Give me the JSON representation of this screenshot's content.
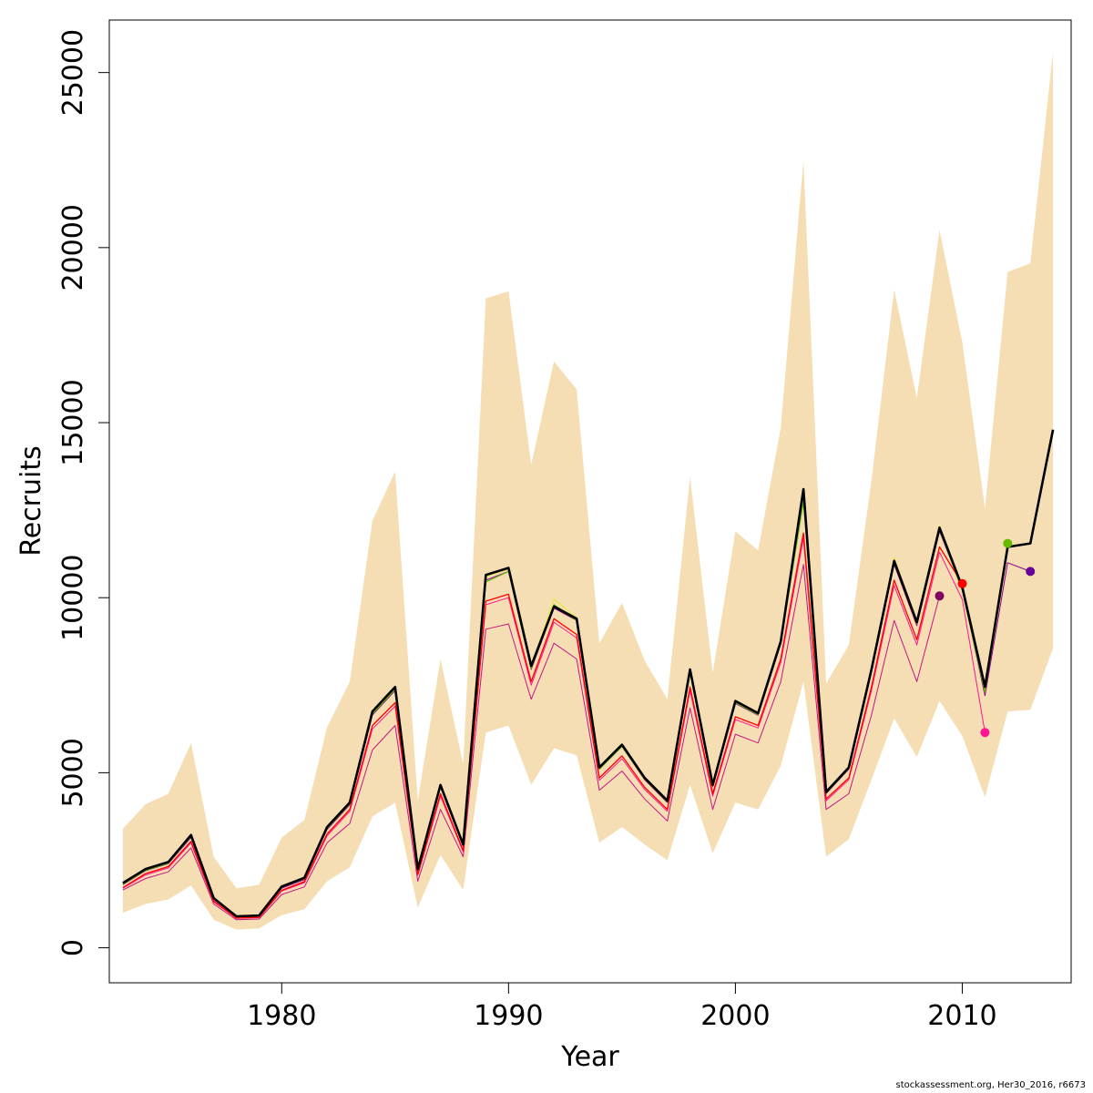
{
  "chart_data": {
    "type": "line",
    "xlabel": "Year",
    "ylabel": "Recruits",
    "xlim": [
      1972.4,
      2014.8
    ],
    "ylim": [
      -1000,
      26500
    ],
    "x_ticks": [
      1980,
      1990,
      2000,
      2010
    ],
    "y_ticks": [
      0,
      5000,
      10000,
      15000,
      20000,
      25000
    ],
    "grid": false,
    "legend": "none",
    "band": {
      "color": "#F5DEB3",
      "x": [
        1973,
        1974,
        1975,
        1976,
        1977,
        1978,
        1979,
        1980,
        1981,
        1982,
        1983,
        1984,
        1985,
        1986,
        1987,
        1988,
        1989,
        1990,
        1991,
        1992,
        1993,
        1994,
        1995,
        1996,
        1997,
        1998,
        1999,
        2000,
        2001,
        2002,
        2003,
        2004,
        2005,
        2006,
        2007,
        2008,
        2009,
        2010,
        2011,
        2012,
        2013,
        2014
      ],
      "lower": [
        1000,
        1250,
        1380,
        1780,
        800,
        520,
        550,
        930,
        1100,
        1900,
        2300,
        3750,
        4150,
        1150,
        2650,
        1650,
        6150,
        6350,
        4650,
        5700,
        5500,
        3000,
        3450,
        2950,
        2500,
        4650,
        2700,
        4150,
        3950,
        5200,
        7600,
        2600,
        3100,
        4800,
        6550,
        5450,
        7050,
        6050,
        4300,
        6750,
        6800,
        8550
      ],
      "upper": [
        3400,
        4100,
        4400,
        5850,
        2600,
        1700,
        1800,
        3150,
        3650,
        6300,
        7600,
        12200,
        13600,
        4200,
        8250,
        5250,
        18550,
        18750,
        13800,
        16750,
        15950,
        8700,
        9850,
        8200,
        7100,
        13450,
        7850,
        11900,
        11350,
        14850,
        22500,
        7550,
        8650,
        13350,
        18800,
        15700,
        20500,
        17300,
        12550,
        19300,
        19550,
        25600
      ]
    },
    "series": [
      {
        "color": "#000000",
        "width": 2.6,
        "x": [
          1973,
          1974,
          1975,
          1976,
          1977,
          1978,
          1979,
          1980,
          1981,
          1982,
          1983,
          1984,
          1985,
          1986,
          1987,
          1988,
          1989,
          1990,
          1991,
          1992,
          1993,
          1994,
          1995,
          1996,
          1997,
          1998,
          1999,
          2000,
          2001,
          2002,
          2003,
          2004,
          2005,
          2006,
          2007,
          2008,
          2009,
          2010,
          2011,
          2012,
          2013,
          2014
        ],
        "y": [
          1850,
          2250,
          2450,
          3220,
          1420,
          900,
          920,
          1750,
          2000,
          3450,
          4150,
          6750,
          7450,
          2250,
          4650,
          2950,
          10650,
          10850,
          8050,
          9750,
          9400,
          5150,
          5800,
          4850,
          4200,
          7950,
          4650,
          7050,
          6700,
          8750,
          13100,
          4450,
          5150,
          7950,
          11050,
          9300,
          12000,
          10300,
          7450,
          11450,
          11550,
          14800
        ]
      },
      {
        "color": "#E3E840",
        "width": 1.2,
        "x": [
          1973,
          1974,
          1975,
          1976,
          1977,
          1978,
          1979,
          1980,
          1981,
          1982,
          1983,
          1984,
          1985,
          1986,
          1987,
          1988,
          1989,
          1990,
          1991,
          1992,
          1993,
          1994,
          1995,
          1996,
          1997,
          1998,
          1999,
          2000,
          2001,
          2002,
          2003,
          2004,
          2005,
          2006,
          2007,
          2008,
          2009,
          2010,
          2011,
          2012
        ],
        "y": [
          1830,
          2230,
          2430,
          3200,
          1410,
          895,
          915,
          1740,
          1990,
          3430,
          4130,
          6720,
          7420,
          2240,
          4630,
          2940,
          10600,
          10820,
          8030,
          9960,
          9420,
          5130,
          5780,
          4840,
          4190,
          7930,
          4640,
          7030,
          6690,
          8740,
          12950,
          4440,
          5140,
          7940,
          11150,
          9290,
          12050,
          10350,
          7450,
          11550
        ]
      },
      {
        "color": "#66BB00",
        "width": 1.2,
        "x": [
          1973,
          1974,
          1975,
          1976,
          1977,
          1978,
          1979,
          1980,
          1981,
          1982,
          1983,
          1984,
          1985,
          1986,
          1987,
          1988,
          1989,
          1990,
          1991,
          1992,
          1993,
          1994,
          1995,
          1996,
          1997,
          1998,
          1999,
          2000,
          2001,
          2002,
          2003,
          2004,
          2005,
          2006,
          2007,
          2008,
          2009,
          2010,
          2011,
          2012
        ],
        "y": [
          1810,
          2210,
          2410,
          3180,
          1400,
          890,
          910,
          1730,
          1980,
          3410,
          4110,
          6680,
          7380,
          2230,
          4600,
          2920,
          10450,
          10750,
          7980,
          9800,
          9350,
          5100,
          5750,
          4820,
          4170,
          7900,
          4620,
          7000,
          6660,
          8700,
          12750,
          4420,
          5120,
          7900,
          11050,
          9250,
          11950,
          10200,
          7300,
          11550
        ]
      },
      {
        "color": "#FF0000",
        "width": 1.3,
        "x": [
          1973,
          1974,
          1975,
          1976,
          1977,
          1978,
          1979,
          1980,
          1981,
          1982,
          1983,
          1984,
          1985,
          1986,
          1987,
          1988,
          1989,
          1990,
          1991,
          1992,
          1993,
          1994,
          1995,
          1996,
          1997,
          1998,
          1999,
          2000,
          2001,
          2002,
          2003,
          2004,
          2005,
          2006,
          2007,
          2008,
          2009,
          2010
        ],
        "y": [
          1720,
          2120,
          2320,
          3040,
          1330,
          850,
          870,
          1640,
          1890,
          3250,
          3950,
          6350,
          7000,
          2100,
          4400,
          2780,
          9900,
          10100,
          7600,
          9400,
          8950,
          4850,
          5480,
          4580,
          3950,
          7450,
          4400,
          6600,
          6350,
          8250,
          11850,
          4250,
          4850,
          7450,
          10500,
          8800,
          11450,
          10400
        ]
      },
      {
        "color": "#FF1493",
        "width": 1.0,
        "x": [
          1973,
          1974,
          1975,
          1976,
          1977,
          1978,
          1979,
          1980,
          1981,
          1982,
          1983,
          1984,
          1985,
          1986,
          1987,
          1988,
          1989,
          1990,
          1991,
          1992,
          1993,
          1994,
          1995,
          1996,
          1997,
          1998,
          1999,
          2000,
          2001,
          2002,
          2003,
          2004,
          2005,
          2006,
          2007,
          2008,
          2009,
          2010,
          2011
        ],
        "y": [
          1700,
          2080,
          2280,
          3000,
          1310,
          840,
          860,
          1620,
          1860,
          3200,
          3900,
          6250,
          6900,
          2070,
          4330,
          2740,
          9800,
          10000,
          7500,
          9300,
          8850,
          4780,
          5400,
          4520,
          3900,
          7350,
          4330,
          6520,
          6280,
          8150,
          11700,
          4200,
          4800,
          7350,
          10350,
          8650,
          11300,
          9950,
          6150
        ]
      },
      {
        "color": "#C71585",
        "width": 1.0,
        "x": [
          1973,
          1974,
          1975,
          1976,
          1977,
          1978,
          1979,
          1980,
          1981,
          1982,
          1983,
          1984,
          1985,
          1986,
          1987,
          1988,
          1989,
          1990,
          1991,
          1992,
          1993,
          1994,
          1995,
          1996,
          1997,
          1998,
          1999,
          2000,
          2001,
          2002,
          2003,
          2004,
          2005,
          2006,
          2007,
          2008,
          2009
        ],
        "y": [
          1650,
          1980,
          2170,
          2850,
          1250,
          800,
          820,
          1520,
          1740,
          3000,
          3550,
          5650,
          6350,
          1900,
          3950,
          2600,
          9100,
          9250,
          7100,
          8700,
          8250,
          4500,
          5050,
          4250,
          3620,
          6850,
          3950,
          6100,
          5850,
          7600,
          10950,
          3950,
          4400,
          6650,
          9350,
          7600,
          10050
        ]
      },
      {
        "color": "#8B008B",
        "width": 1.0,
        "x": [
          1973,
          1974,
          1975,
          1976,
          1977,
          1978,
          1979,
          1980,
          1981,
          1982,
          1983,
          1984,
          1985,
          1986,
          1987,
          1988,
          1989,
          1990,
          1991,
          1992,
          1993,
          1994,
          1995,
          1996,
          1997,
          1998,
          1999,
          2000,
          2001,
          2002,
          2003,
          2004,
          2005,
          2006,
          2007,
          2008,
          2009,
          2010,
          2011,
          2012,
          2013
        ],
        "y": [
          1800,
          2200,
          2400,
          3150,
          1380,
          880,
          900,
          1700,
          1950,
          3380,
          4080,
          6650,
          7350,
          2200,
          4580,
          2900,
          10500,
          10750,
          7950,
          9700,
          9350,
          5100,
          5750,
          4800,
          4150,
          7880,
          4600,
          6980,
          6640,
          8680,
          12900,
          4400,
          5100,
          7880,
          10950,
          9200,
          11900,
          10250,
          7200,
          11000,
          10750
        ]
      }
    ],
    "endpoints": [
      {
        "x": 2009,
        "y": 10050,
        "color": "#800060"
      },
      {
        "x": 2010,
        "y": 10400,
        "color": "#FF0000"
      },
      {
        "x": 2011,
        "y": 6150,
        "color": "#FF1493"
      },
      {
        "x": 2012,
        "y": 11550,
        "color": "#66BB00"
      },
      {
        "x": 2013,
        "y": 10750,
        "color": "#660099"
      }
    ]
  },
  "credit": "stockassessment.org, Her30_2016, r6673"
}
